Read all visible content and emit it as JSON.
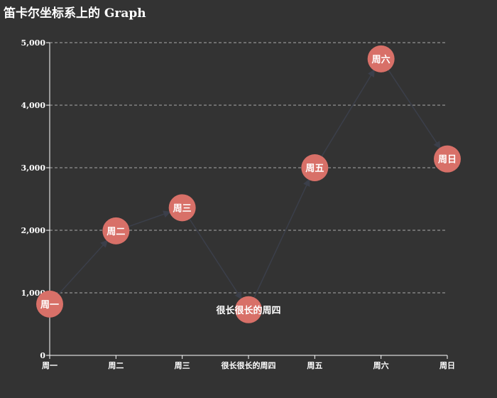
{
  "chart_data": {
    "type": "graph",
    "title": "笛卡尔坐标系上的 Graph",
    "categories": [
      "周一",
      "周二",
      "周三",
      "很长很长的周四",
      "周五",
      "周六",
      "周日"
    ],
    "values": [
      820,
      1990,
      2360,
      730,
      3000,
      4740,
      3140
    ],
    "node_labels": [
      "周一",
      "周二",
      "周三",
      "很长很长的周四",
      "周五",
      "周六",
      "周日"
    ],
    "links": [
      [
        0,
        1
      ],
      [
        1,
        2
      ],
      [
        2,
        3
      ],
      [
        3,
        4
      ],
      [
        4,
        5
      ],
      [
        5,
        6
      ]
    ],
    "ylim": [
      0,
      5000
    ],
    "yticks": [
      0,
      1000,
      2000,
      3000,
      4000,
      5000
    ],
    "ytick_labels": [
      "0",
      "1,000",
      "2,000",
      "3,000",
      "4,000",
      "5,000"
    ],
    "grid": true,
    "colors": {
      "background": "#333333",
      "node": "#d87068",
      "axis": "#ffffff",
      "grid": "#aaaaaa",
      "link": "#3b3f4a"
    }
  }
}
